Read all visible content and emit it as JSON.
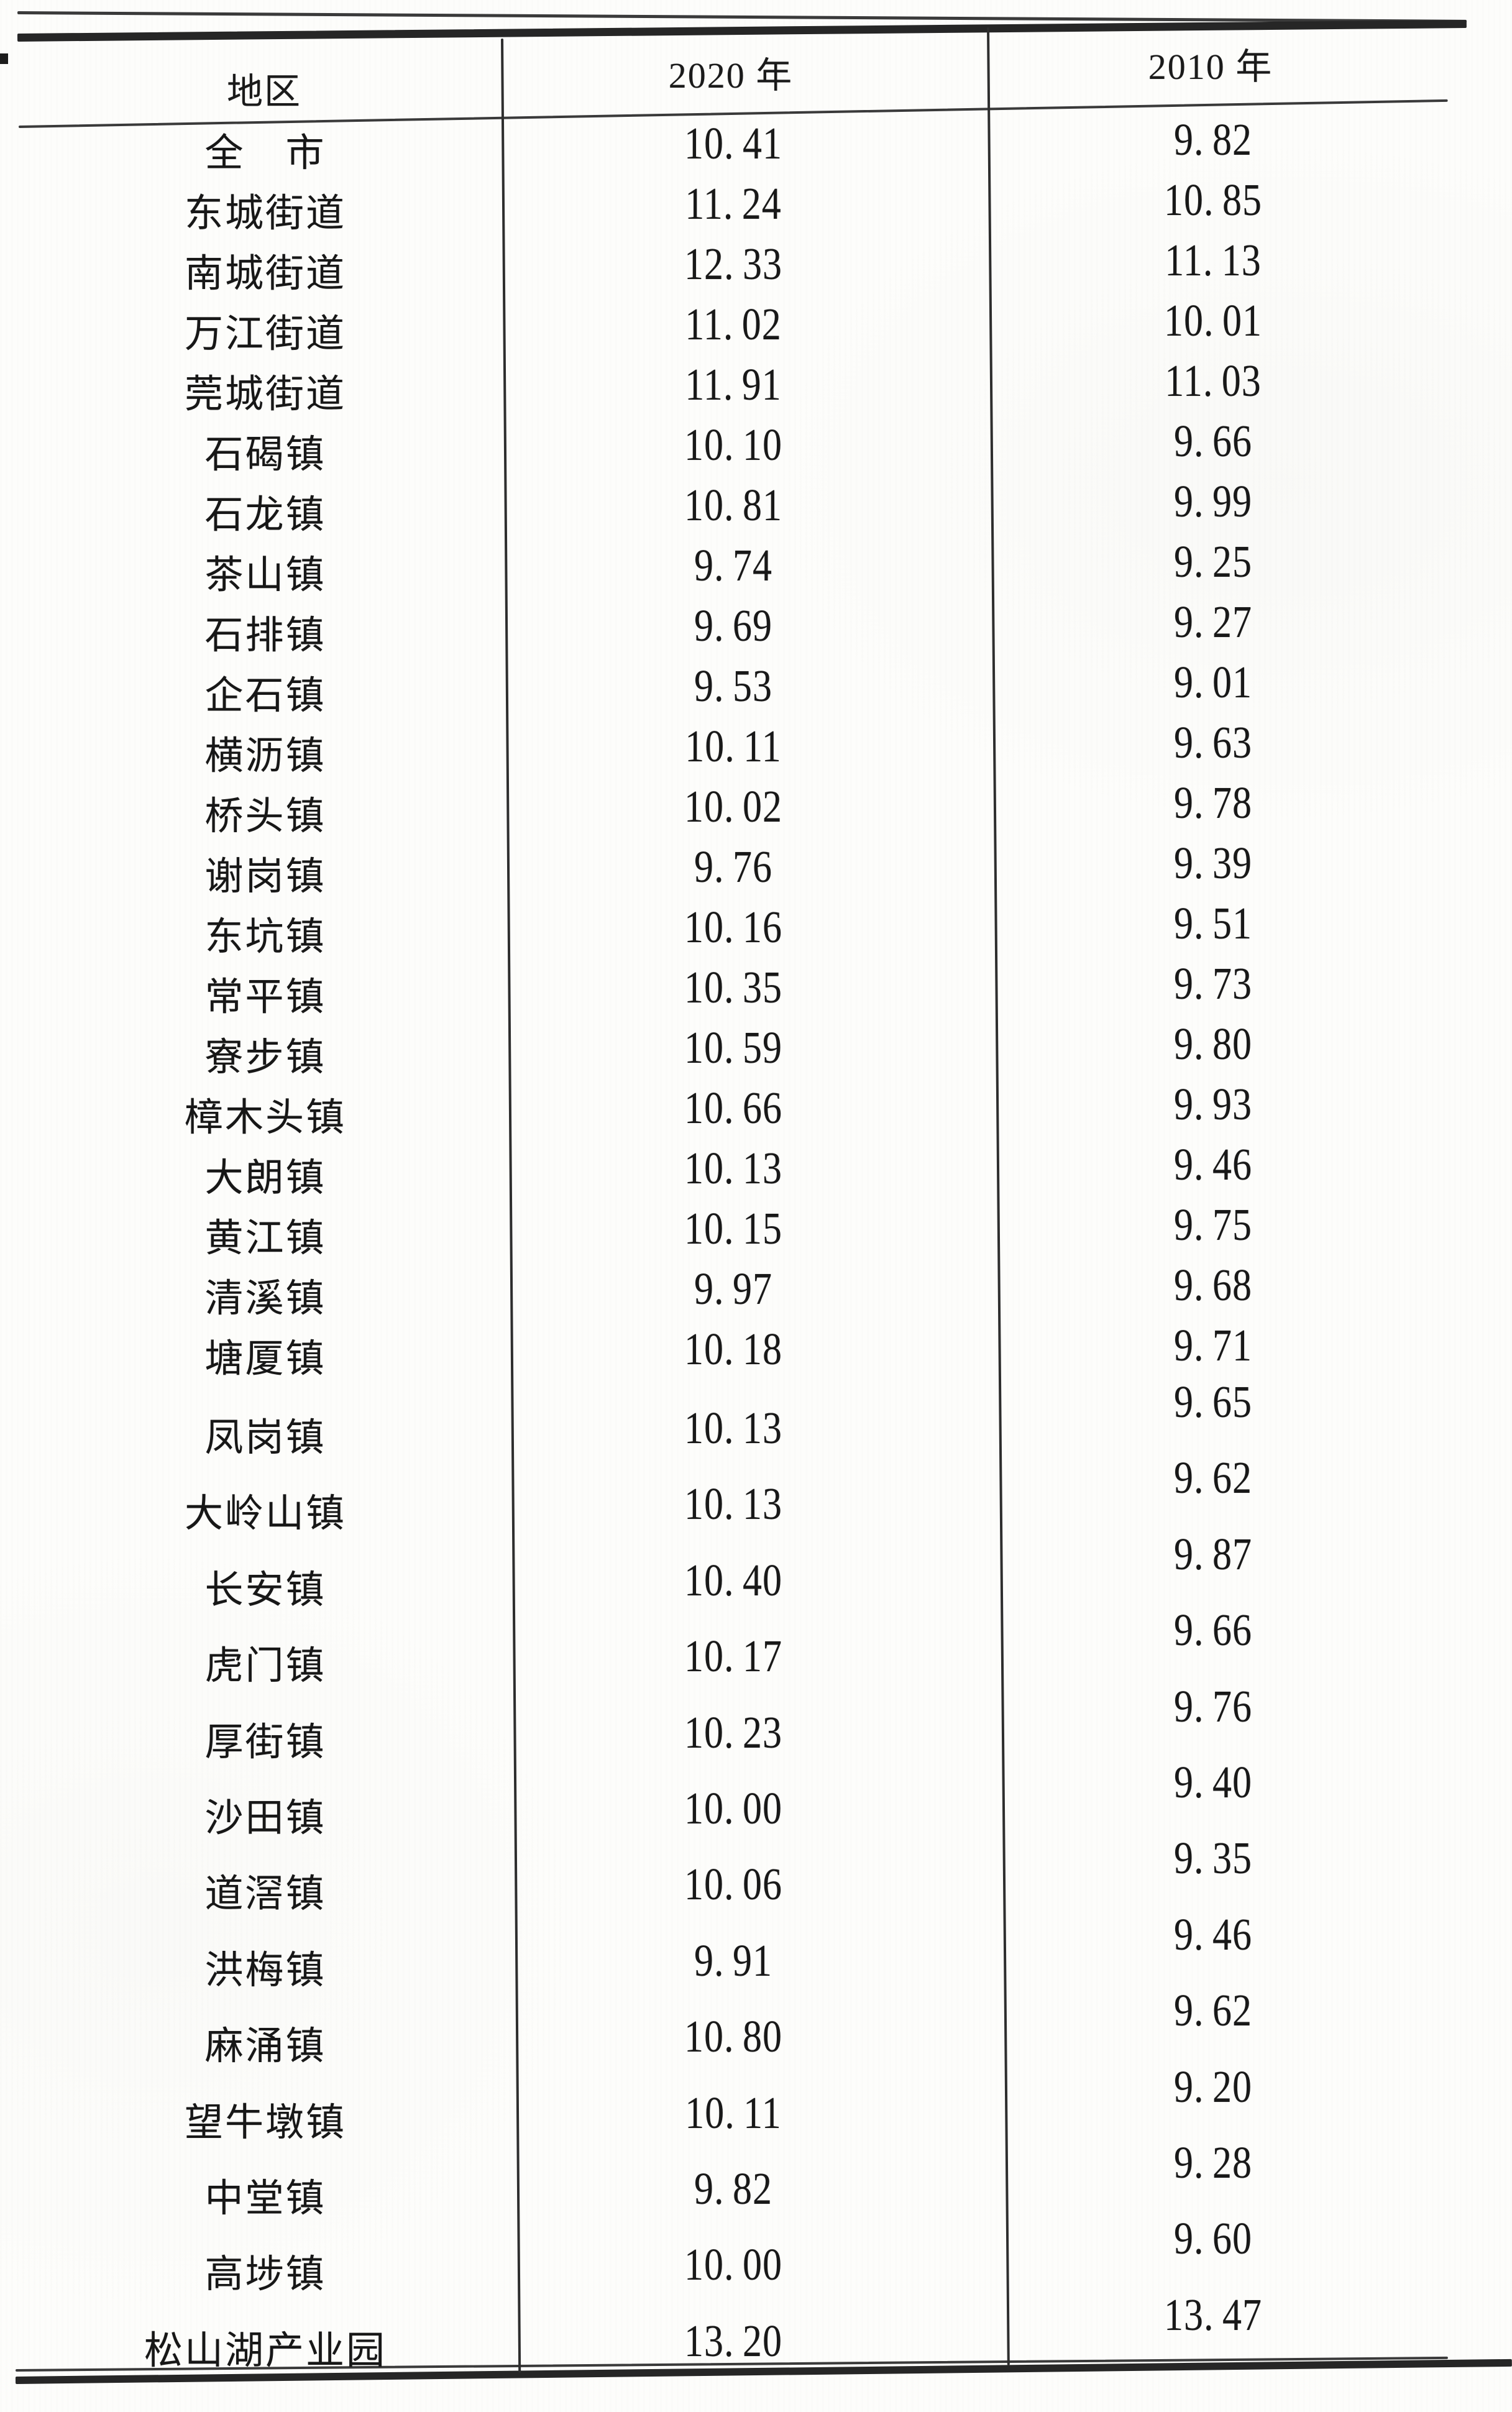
{
  "table": {
    "header": {
      "region": "地区",
      "col2020": "2020 年",
      "col2010": "2010 年"
    },
    "rows": [
      {
        "region": "全　市",
        "v2020": "10.41",
        "v2010": "9.82"
      },
      {
        "region": "东城街道",
        "v2020": "11.24",
        "v2010": "10.85"
      },
      {
        "region": "南城街道",
        "v2020": "12.33",
        "v2010": "11.13"
      },
      {
        "region": "万江街道",
        "v2020": "11.02",
        "v2010": "10.01"
      },
      {
        "region": "莞城街道",
        "v2020": "11.91",
        "v2010": "11.03"
      },
      {
        "region": "石碣镇",
        "v2020": "10.10",
        "v2010": "9.66"
      },
      {
        "region": "石龙镇",
        "v2020": "10.81",
        "v2010": "9.99"
      },
      {
        "region": "茶山镇",
        "v2020": "9.74",
        "v2010": "9.25"
      },
      {
        "region": "石排镇",
        "v2020": "9.69",
        "v2010": "9.27"
      },
      {
        "region": "企石镇",
        "v2020": "9.53",
        "v2010": "9.01"
      },
      {
        "region": "横沥镇",
        "v2020": "10.11",
        "v2010": "9.63"
      },
      {
        "region": "桥头镇",
        "v2020": "10.02",
        "v2010": "9.78"
      },
      {
        "region": "谢岗镇",
        "v2020": "9.76",
        "v2010": "9.39"
      },
      {
        "region": "东坑镇",
        "v2020": "10.16",
        "v2010": "9.51"
      },
      {
        "region": "常平镇",
        "v2020": "10.35",
        "v2010": "9.73"
      },
      {
        "region": "寮步镇",
        "v2020": "10.59",
        "v2010": "9.80"
      },
      {
        "region": "樟木头镇",
        "v2020": "10.66",
        "v2010": "9.93"
      },
      {
        "region": "大朗镇",
        "v2020": "10.13",
        "v2010": "9.46"
      },
      {
        "region": "黄江镇",
        "v2020": "10.15",
        "v2010": "9.75"
      },
      {
        "region": "清溪镇",
        "v2020": "9.97",
        "v2010": "9.68"
      },
      {
        "region": "塘厦镇",
        "v2020": "10.18",
        "v2010": "9.71"
      },
      {
        "region": "凤岗镇",
        "v2020": "10.13",
        "v2010": "9.65"
      },
      {
        "region": "大岭山镇",
        "v2020": "10.13",
        "v2010": "9.62"
      },
      {
        "region": "长安镇",
        "v2020": "10.40",
        "v2010": "9.87"
      },
      {
        "region": "虎门镇",
        "v2020": "10.17",
        "v2010": "9.66"
      },
      {
        "region": "厚街镇",
        "v2020": "10.23",
        "v2010": "9.76"
      },
      {
        "region": "沙田镇",
        "v2020": "10.00",
        "v2010": "9.40"
      },
      {
        "region": "道滘镇",
        "v2020": "10.06",
        "v2010": "9.35"
      },
      {
        "region": "洪梅镇",
        "v2020": "9.91",
        "v2010": "9.46"
      },
      {
        "region": "麻涌镇",
        "v2020": "10.80",
        "v2010": "9.62"
      },
      {
        "region": "望牛墩镇",
        "v2020": "10.11",
        "v2010": "9.20"
      },
      {
        "region": "中堂镇",
        "v2020": "9.82",
        "v2010": "9.28"
      },
      {
        "region": "高埗镇",
        "v2020": "10.00",
        "v2010": "9.60"
      },
      {
        "region": "松山湖产业园",
        "v2020": "13.20",
        "v2010": "13.47"
      }
    ]
  }
}
